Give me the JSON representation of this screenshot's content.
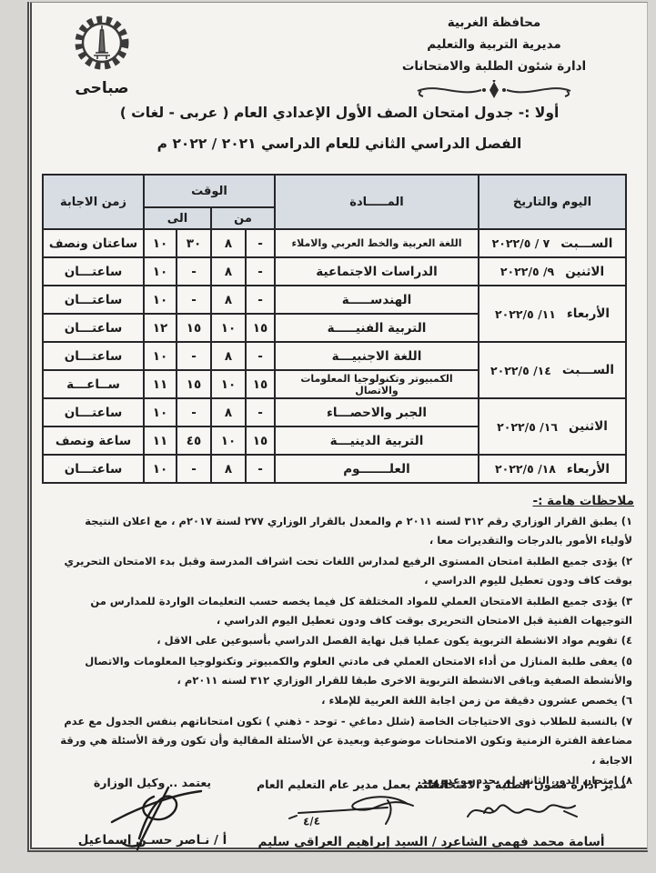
{
  "letterhead": {
    "org_lines": [
      "محافظة الغربية",
      "مديرية التربية والتعليم",
      "ادارة شئون الطلبة والامتحانات"
    ],
    "shift_label": "صباحى",
    "logo": "gharbia-governorate-gear-minaret-emblem"
  },
  "titles": {
    "line1": "أولا :- جدول امتحان الصف الأول الإعدادي العام ( عربى - لغات )",
    "line2": "الفصل الدراسي الثاني للعام الدراسي ٢٠٢١ / ٢٠٢٢ م"
  },
  "table": {
    "headers": {
      "day": "اليوم والتاريخ",
      "subject": "المـــــادة",
      "time": "الوقت",
      "from": "من",
      "to": "الى",
      "duration": "زمن الاجابة"
    },
    "rows": [
      {
        "day": {
          "name": "الســـبت",
          "date": "٢٠٢٢/٥ / ٧",
          "span": 1
        },
        "subject": "اللغة العربية والخط العربي والاملاء",
        "small": true,
        "from": {
          "h": "٨",
          "m": "-"
        },
        "to": {
          "h": "١٠",
          "m": "٣٠"
        },
        "duration": "ساعتان ونصف"
      },
      {
        "day": {
          "name": "الاثنين",
          "date": "٢٠٢٢/٥ /٩",
          "span": 1
        },
        "subject": "الدراسات الاجتماعية",
        "from": {
          "h": "٨",
          "m": "-"
        },
        "to": {
          "h": "١٠",
          "m": "-"
        },
        "duration": "ساعتـــان"
      },
      {
        "day": {
          "name": "الأربعاء",
          "date": "٢٠٢٢/٥ /١١",
          "span": 2
        },
        "subject": "الهندســـــة",
        "from": {
          "h": "٨",
          "m": "-"
        },
        "to": {
          "h": "١٠",
          "m": "-"
        },
        "duration": "ساعتـــان"
      },
      {
        "subject": "التربية الفنيـــــة",
        "from": {
          "h": "١٠",
          "m": "١٥"
        },
        "to": {
          "h": "١٢",
          "m": "١٥"
        },
        "duration": "ساعتـــان"
      },
      {
        "day": {
          "name": "الســـبت",
          "date": "٢٠٢٢/٥ /١٤",
          "span": 2
        },
        "subject": "اللغة الاجنبيـــة",
        "from": {
          "h": "٨",
          "m": "-"
        },
        "to": {
          "h": "١٠",
          "m": "-"
        },
        "duration": "ساعتـــان"
      },
      {
        "subject": "الكمبيوتر وتكنولوجيا المعلومات والاتصال",
        "small": true,
        "from": {
          "h": "١٠",
          "m": "١٥"
        },
        "to": {
          "h": "١١",
          "m": "١٥"
        },
        "duration": "ســاعـــة"
      },
      {
        "day": {
          "name": "الاثنين",
          "date": "٢٠٢٢/٥ /١٦",
          "span": 2
        },
        "subject": "الجبر والاحصـــاء",
        "from": {
          "h": "٨",
          "m": "-"
        },
        "to": {
          "h": "١٠",
          "m": "-"
        },
        "duration": "ساعتـــان"
      },
      {
        "subject": "التربية الدينيـــة",
        "from": {
          "h": "١٠",
          "m": "١٥"
        },
        "to": {
          "h": "١١",
          "m": "٤٥"
        },
        "duration": "ساعة ونصف"
      },
      {
        "day": {
          "name": "الأربعاء",
          "date": "٢٠٢٢/٥ /١٨",
          "span": 1
        },
        "subject": "العلـــــــوم",
        "from": {
          "h": "٨",
          "m": "-"
        },
        "to": {
          "h": "١٠",
          "m": "-"
        },
        "duration": "ساعتـــان"
      }
    ]
  },
  "notes": {
    "title": "ملاحظات هامة :-",
    "items": [
      "١)  يطبق القرار الوزاري رقم ٣١٢ لسنه ٢٠١١ م والمعدل بالقرار الوزاري ٢٧٧ لسنة ٢٠١٧م ، مع اعلان النتيجة لأولياء الأمور بالدرجات والتقديرات معا ،",
      "٢) يؤدى جميع الطلبة امتحان المستوى الرفيع لمدارس اللغات تحت اشراف المدرسة وقبل بدء الامتحان التحريري بوقت كاف ودون تعطيل لليوم الدراسي ،",
      "٣) يؤدى جميع الطلبة الامتحان العملي للمواد المختلفة كل فيما يخصه حسب التعليمات الواردة للمدارس من التوجيهات الفنية قبل  الامتحان التحريرى بوقت كاف ودون تعطيل اليوم الدراسي ،",
      "٤) تقويم مواد الانشطة التربوية يكون عمليا قبل نهاية الفصل الدراسي بأسبوعين على الاقل ،",
      "٥) يعفى طلبة المنازل من أداء الامتحان العملي فى مادتي العلوم والكمبيوتر وتكنولوجيا المعلومات والاتصال  والأنشطة الصفية وباقى الانشطة التربوية الاخرى طبقا للقرار الوزاري  ٣١٢ لسنه ٢٠١١م ،",
      "٦) يخصص عشرون دقيقة من زمن اجابة اللغة العربية للإملاء ،",
      "٧) بالنسبة للطلاب ذوى الاحتياجات الخاصة (شلل دماغي - توحد - ذهني ) تكون امتحاناتهم بنفس الجدول مع عدم مضاعفة الفترة الزمنية وتكون الامتحانات موضوعية وبعيدة عن الأسئلة المقالية وأن تكون ورقة الأسئلة هي ورقة الاجابة ،",
      "٨)  امتحان الدور الثاني لم يحدد موعده بعد."
    ]
  },
  "signatures": {
    "right": {
      "title": "مدير ادارة شئون الطلبة و الامتحانات",
      "name": "أسامة محمد فهمى الشاعر"
    },
    "middle": {
      "title": "القائم بعمل مدير عام التعليم العام",
      "name": "د / السيد إبراهيم العراقى سليم",
      "handwritten_date": "٤/٤"
    },
    "left": {
      "title": "يعتمد .. وكيل الوزارة",
      "name": "أ / نـاصر حسـن إسماعيل"
    }
  },
  "colors": {
    "paper": "#f4f3f0",
    "table_header_fill": "#d7dde3",
    "ink": "#1c1c1c"
  }
}
